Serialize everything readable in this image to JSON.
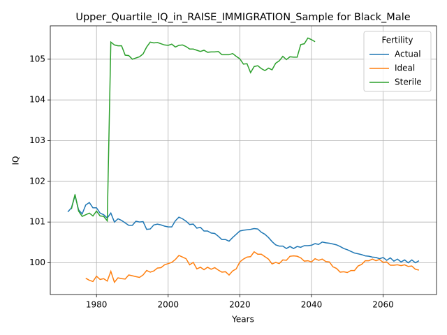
{
  "chart_data": {
    "type": "line",
    "title": "Upper_Quartile_IQ_in_RAISE_IMMIGRATION_Sample for Black_Male",
    "x_label": "Years",
    "y_label": "IQ",
    "legend_title": "Fertility",
    "legend_position": "upper right",
    "grid": true,
    "xlim": [
      1967.1,
      2074.9
    ],
    "ylim": [
      99.22,
      105.82
    ],
    "xticks": [
      1980,
      2000,
      2020,
      2040,
      2060
    ],
    "yticks": [
      100,
      101,
      102,
      103,
      104,
      105
    ],
    "x": [
      1972,
      1973,
      1974,
      1975,
      1976,
      1977,
      1978,
      1979,
      1980,
      1981,
      1982,
      1983,
      1984,
      1985,
      1986,
      1987,
      1988,
      1989,
      1990,
      1991,
      1992,
      1993,
      1994,
      1995,
      1996,
      1997,
      1998,
      1999,
      2000,
      2001,
      2002,
      2003,
      2004,
      2005,
      2006,
      2007,
      2008,
      2009,
      2010,
      2011,
      2012,
      2013,
      2014,
      2015,
      2016,
      2017,
      2018,
      2019,
      2020,
      2021,
      2022,
      2023,
      2024,
      2025,
      2026,
      2027,
      2028,
      2029,
      2030,
      2031,
      2032,
      2033,
      2034,
      2035,
      2036,
      2037,
      2038,
      2039,
      2040,
      2041,
      2042,
      2043,
      2044,
      2045,
      2046,
      2047,
      2048,
      2049,
      2050,
      2051,
      2052,
      2053,
      2054,
      2055,
      2056,
      2057,
      2058,
      2059,
      2060,
      2061,
      2062,
      2063,
      2064,
      2065,
      2066,
      2067,
      2068,
      2069,
      2070
    ],
    "series": [
      {
        "name": "Actual",
        "color": "#1f77b4",
        "values": [
          101.25,
          101.35,
          101.65,
          101.3,
          101.2,
          101.42,
          101.48,
          101.35,
          101.35,
          101.22,
          101.18,
          101.1,
          101.22,
          101.0,
          101.08,
          101.04,
          100.98,
          100.92,
          100.92,
          101.02,
          101.0,
          101.01,
          100.82,
          100.83,
          100.93,
          100.95,
          100.93,
          100.9,
          100.88,
          100.88,
          101.03,
          101.12,
          101.08,
          101.02,
          100.94,
          100.95,
          100.85,
          100.87,
          100.78,
          100.78,
          100.73,
          100.72,
          100.65,
          100.57,
          100.57,
          100.53,
          100.62,
          100.7,
          100.78,
          100.8,
          100.81,
          100.82,
          100.84,
          100.83,
          100.75,
          100.7,
          100.62,
          100.52,
          100.44,
          100.41,
          100.41,
          100.35,
          100.4,
          100.35,
          100.4,
          100.38,
          100.42,
          100.42,
          100.43,
          100.47,
          100.45,
          100.51,
          100.49,
          100.48,
          100.46,
          100.44,
          100.4,
          100.35,
          100.32,
          100.28,
          100.24,
          100.22,
          100.2,
          100.17,
          100.16,
          100.14,
          100.13,
          100.1,
          100.13,
          100.06,
          100.12,
          100.04,
          100.09,
          100.02,
          100.07,
          100.0,
          100.07,
          100.0,
          100.05
        ]
      },
      {
        "name": "Ideal",
        "color": "#ff7f0e",
        "values": [
          null,
          null,
          null,
          null,
          null,
          99.62,
          99.57,
          99.54,
          99.67,
          99.59,
          99.61,
          99.55,
          99.79,
          99.52,
          99.63,
          99.61,
          99.6,
          99.7,
          99.68,
          99.66,
          99.64,
          99.7,
          99.81,
          99.77,
          99.8,
          99.87,
          99.88,
          99.95,
          99.98,
          100.01,
          100.08,
          100.18,
          100.14,
          100.1,
          99.95,
          100.01,
          99.85,
          99.89,
          99.83,
          99.89,
          99.84,
          99.88,
          99.82,
          99.77,
          99.78,
          99.7,
          99.8,
          99.85,
          100.02,
          100.09,
          100.14,
          100.15,
          100.27,
          100.21,
          100.21,
          100.15,
          100.09,
          99.97,
          100.01,
          99.98,
          100.07,
          100.06,
          100.16,
          100.17,
          100.16,
          100.12,
          100.04,
          100.05,
          100.02,
          100.1,
          100.06,
          100.09,
          100.03,
          100.02,
          99.9,
          99.86,
          99.77,
          99.78,
          99.76,
          99.81,
          99.81,
          99.92,
          99.96,
          100.05,
          100.05,
          100.09,
          100.05,
          100.08,
          100.01,
          100.02,
          99.94,
          99.94,
          99.95,
          99.93,
          99.95,
          99.91,
          99.92,
          99.84,
          99.82
        ]
      },
      {
        "name": "Sterile",
        "color": "#2ca02c",
        "values": [
          null,
          101.32,
          101.68,
          101.27,
          101.14,
          101.18,
          101.22,
          101.15,
          101.27,
          101.15,
          101.14,
          101.03,
          105.42,
          105.35,
          105.33,
          105.33,
          105.1,
          105.09,
          105.0,
          105.03,
          105.06,
          105.13,
          105.3,
          105.42,
          105.4,
          105.41,
          105.38,
          105.35,
          105.34,
          105.37,
          105.3,
          105.34,
          105.35,
          105.31,
          105.25,
          105.25,
          105.22,
          105.19,
          105.22,
          105.17,
          105.18,
          105.18,
          105.19,
          105.11,
          105.11,
          105.11,
          105.14,
          105.07,
          105.01,
          104.88,
          104.89,
          104.67,
          104.82,
          104.84,
          104.77,
          104.72,
          104.78,
          104.74,
          104.9,
          104.96,
          105.07,
          104.99,
          105.06,
          105.05,
          105.05,
          105.36,
          105.38,
          105.52,
          105.48,
          105.43,
          null,
          null,
          null,
          null,
          null,
          null,
          null,
          null,
          null,
          null,
          null,
          null,
          null,
          null,
          null,
          null,
          null,
          null,
          null,
          null,
          null,
          null,
          null,
          null,
          null,
          null,
          null,
          null,
          null
        ]
      }
    ]
  }
}
